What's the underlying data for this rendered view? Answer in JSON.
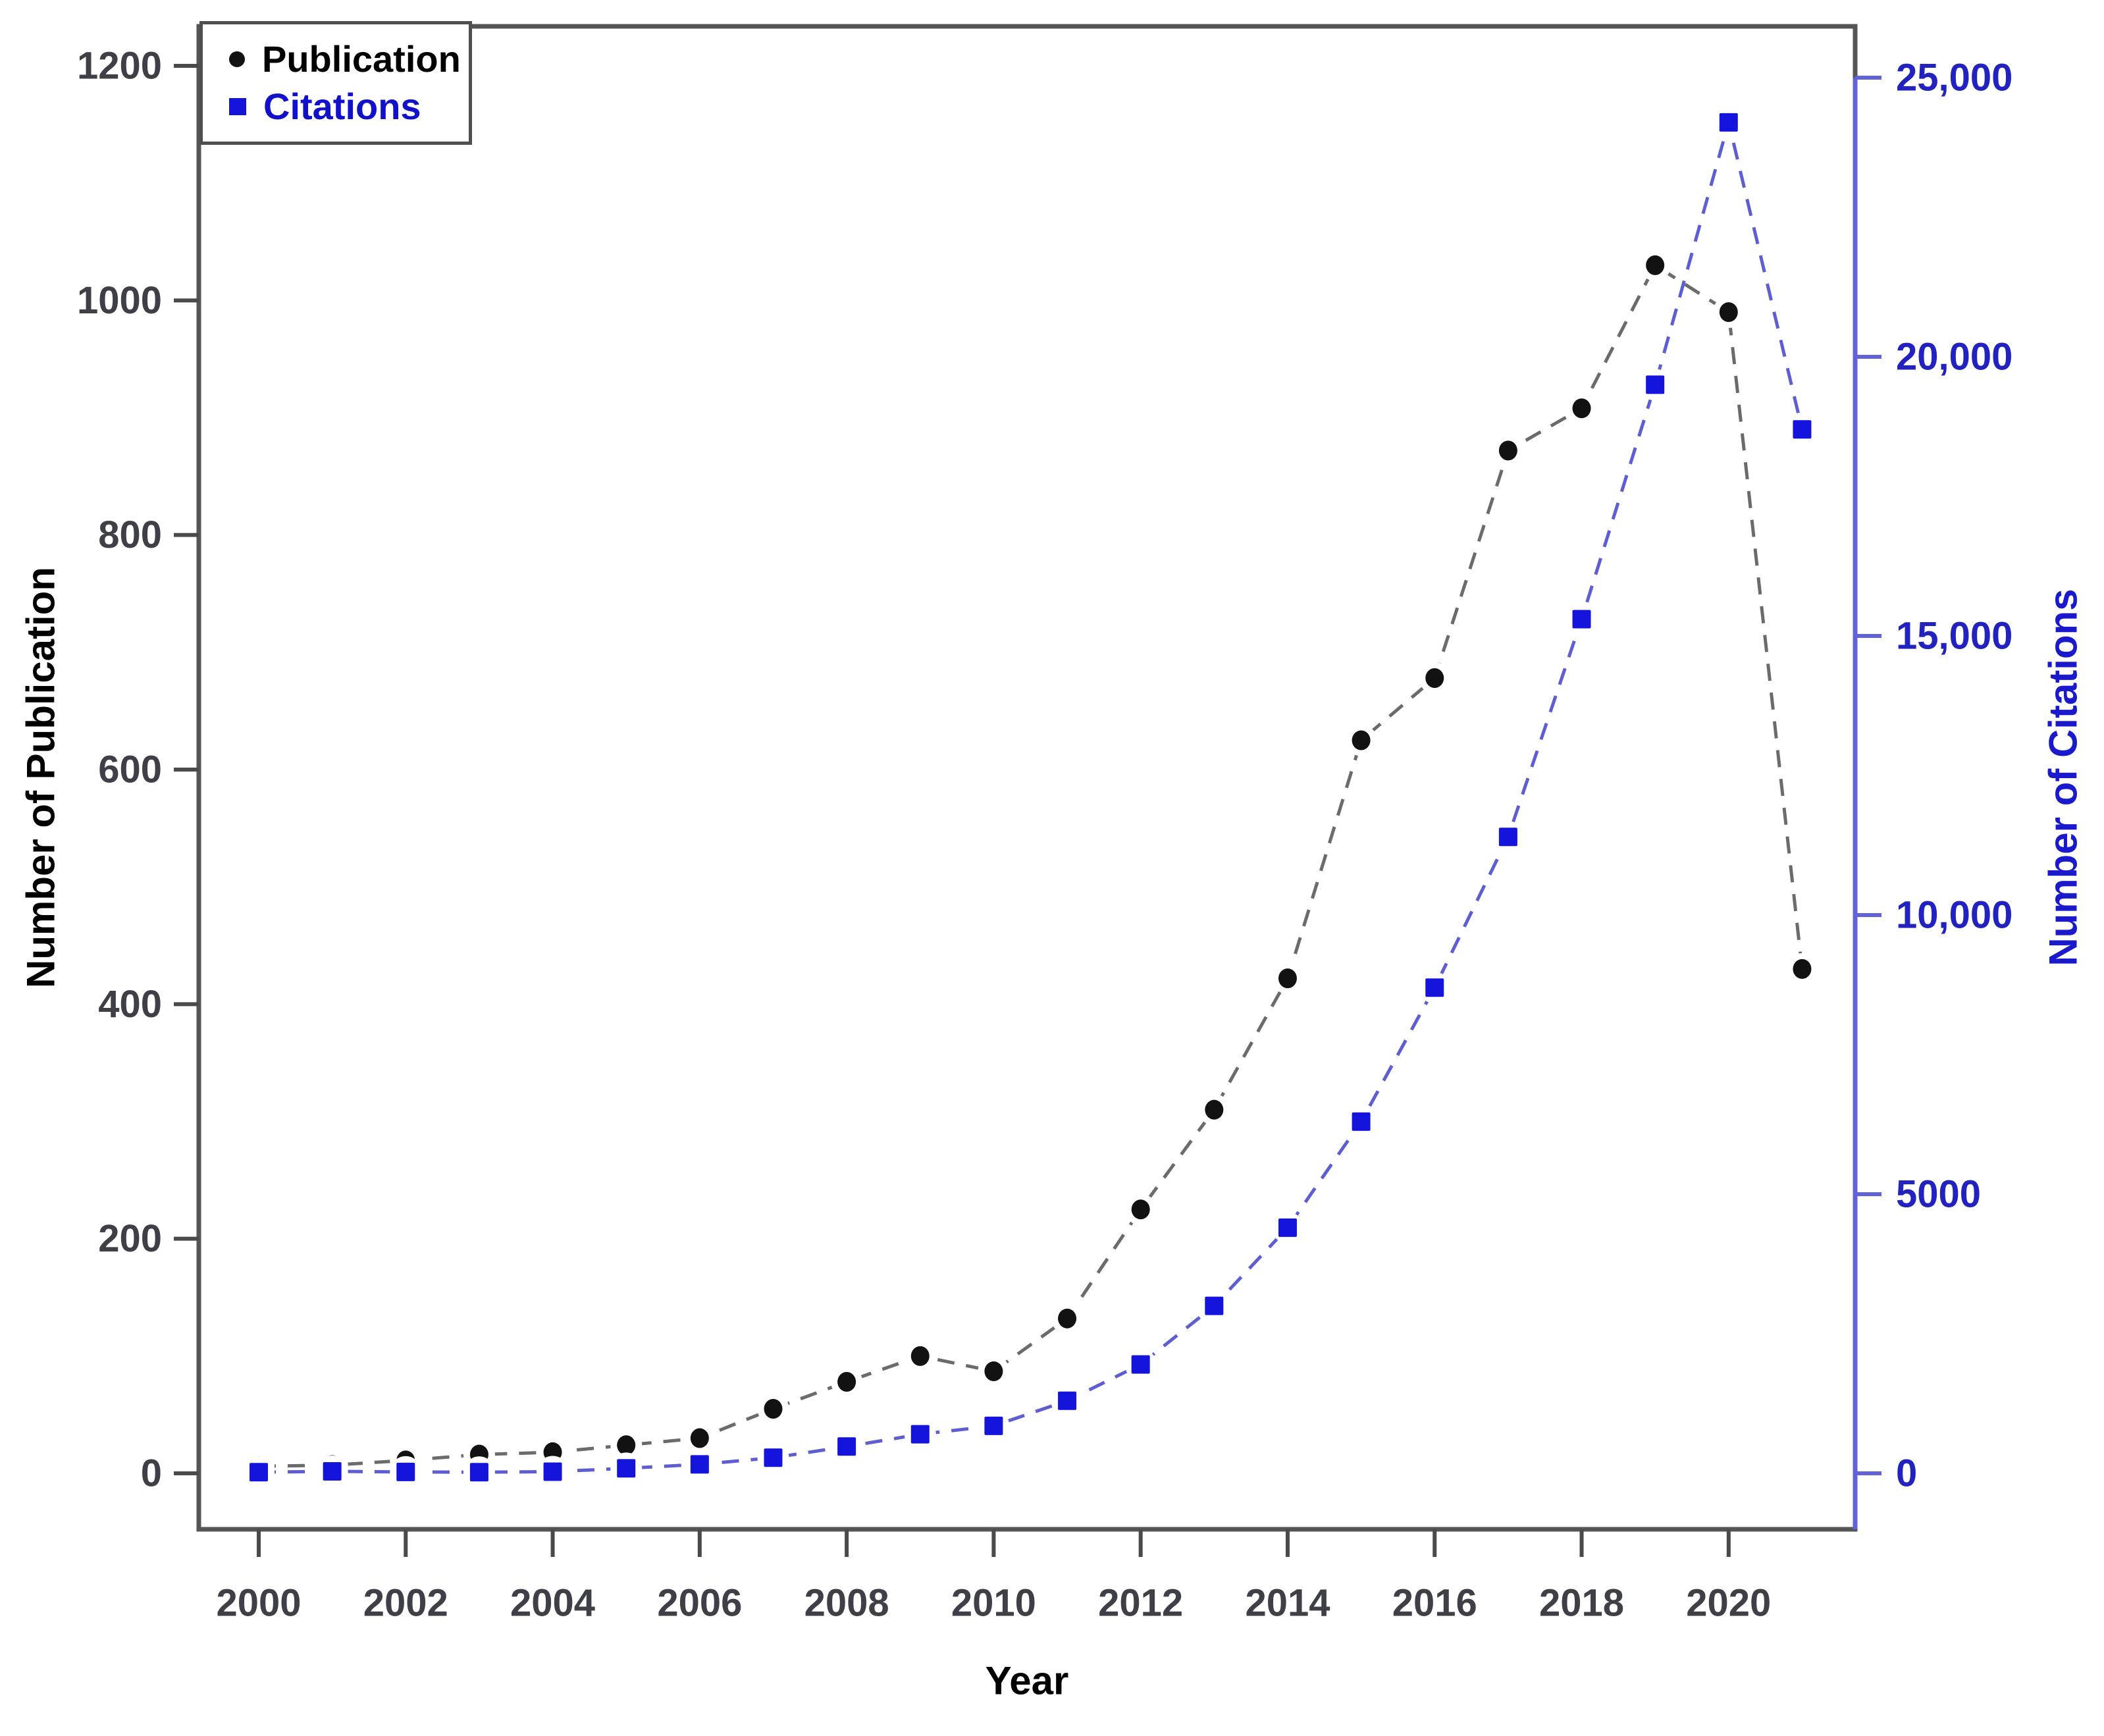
{
  "chart_data": {
    "type": "line",
    "title": "",
    "xlabel": "Year",
    "ylabel_left": "Number of Publication",
    "ylabel_right": "Number of Citations",
    "x": [
      2000,
      2001,
      2002,
      2003,
      2004,
      2005,
      2006,
      2007,
      2008,
      2009,
      2010,
      2011,
      2012,
      2013,
      2014,
      2015,
      2016,
      2017,
      2018,
      2019,
      2020,
      2021
    ],
    "series": [
      {
        "name": "Publication",
        "axis": "left",
        "marker": "circle",
        "marker_color": "#121212",
        "line_color": "#6b6b6b",
        "line_style": "dashed",
        "values": [
          6,
          7,
          11,
          16,
          18,
          24,
          30,
          55,
          78,
          100,
          87,
          132,
          225,
          310,
          422,
          625,
          678,
          872,
          908,
          1030,
          990,
          430
        ]
      },
      {
        "name": "Citations",
        "axis": "right",
        "marker": "square",
        "marker_color": "#1414dd",
        "line_color": "#5e5ed2",
        "line_style": "dashed",
        "values": [
          20,
          35,
          25,
          20,
          30,
          90,
          160,
          280,
          480,
          700,
          850,
          1300,
          1950,
          3000,
          4400,
          6300,
          8700,
          11400,
          15300,
          19500,
          24200,
          18700
        ]
      }
    ],
    "x_ticks": [
      2000,
      2002,
      2004,
      2006,
      2008,
      2010,
      2012,
      2014,
      2016,
      2018,
      2020
    ],
    "left_axis": {
      "ticks": [
        0,
        200,
        400,
        600,
        800,
        1000,
        1200
      ],
      "labels": [
        "0",
        "200",
        "400",
        "600",
        "800",
        "1000",
        "1200"
      ],
      "range": [
        0,
        1260
      ],
      "color": "#3f3f47"
    },
    "right_axis": {
      "ticks": [
        0,
        5000,
        10000,
        15000,
        20000,
        25000
      ],
      "labels": [
        "0",
        "5000",
        "10,000",
        "15,000",
        "20,000",
        "25,000"
      ],
      "range": [
        0,
        26000
      ],
      "axis_color": "#6161d8",
      "label_color": "#2222c0"
    },
    "grid": false,
    "legend_position": "top-left",
    "frame_color": "#555555",
    "tick_color": "#4a4a4a",
    "tick_label_color": "#3f3f47"
  },
  "legend": {
    "items": [
      {
        "label": "Publication"
      },
      {
        "label": "Citations"
      }
    ]
  }
}
